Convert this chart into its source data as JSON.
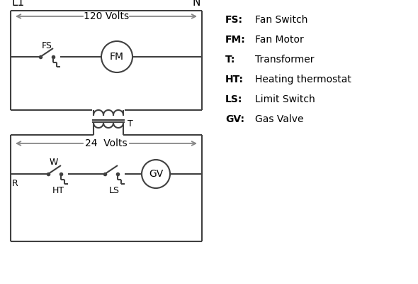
{
  "bg_color": "#ffffff",
  "line_color": "#404040",
  "arrow_color": "#888888",
  "text_color": "#000000",
  "font_family": "DejaVu Sans",
  "legend_items": [
    [
      "FS:",
      "Fan Switch"
    ],
    [
      "FM:",
      "Fan Motor"
    ],
    [
      "T:",
      "Transformer"
    ],
    [
      "HT:",
      "Heating thermostat"
    ],
    [
      "LS:",
      "Limit Switch"
    ],
    [
      "GV:",
      "Gas Valve"
    ]
  ],
  "L1_label": "L1",
  "N_label": "N",
  "volts120": "120 Volts",
  "volts24": "24  Volts",
  "T_label": "T",
  "FS_label": "FS",
  "FM_label": "FM",
  "R_label": "R",
  "W_label": "W",
  "HT_label": "HT",
  "LS_label": "LS",
  "GV_label": "GV"
}
